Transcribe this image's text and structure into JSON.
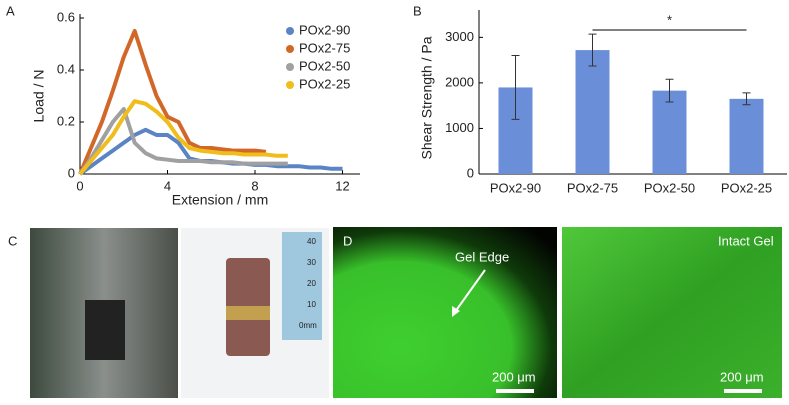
{
  "chart_data": [
    {
      "type": "line",
      "panel": "A",
      "xlabel": "Extension / mm",
      "ylabel": "Load / N",
      "x": [
        0,
        0.5,
        1,
        1.5,
        2,
        2.5,
        3,
        3.5,
        4,
        4.5,
        5,
        5.5,
        6,
        6.5,
        7,
        7.5,
        8,
        8.5,
        9,
        9.5,
        10,
        10.5,
        11,
        11.5,
        12
      ],
      "series": [
        {
          "name": "POx2-90",
          "color": "#5b84c4",
          "values": [
            0,
            0.03,
            0.06,
            0.09,
            0.12,
            0.15,
            0.17,
            0.15,
            0.15,
            0.12,
            0.06,
            0.05,
            0.05,
            0.045,
            0.04,
            0.04,
            0.035,
            0.035,
            0.03,
            0.03,
            0.03,
            0.025,
            0.025,
            0.02,
            0.02
          ]
        },
        {
          "name": "POx2-75",
          "color": "#d2672a",
          "values": [
            0,
            0.1,
            0.2,
            0.32,
            0.45,
            0.55,
            0.42,
            0.3,
            0.22,
            0.2,
            0.12,
            0.1,
            0.1,
            0.095,
            0.09,
            0.09,
            0.09,
            0.085,
            null,
            null,
            null,
            null,
            null,
            null,
            null
          ]
        },
        {
          "name": "POx2-50",
          "color": "#a0a0a0",
          "values": [
            0,
            0.06,
            0.13,
            0.2,
            0.25,
            0.12,
            0.08,
            0.06,
            0.055,
            0.05,
            0.05,
            0.05,
            0.045,
            0.045,
            0.045,
            0.04,
            0.04,
            0.04,
            0.04,
            0.04,
            null,
            null,
            null,
            null,
            null
          ]
        },
        {
          "name": "POx2-25",
          "color": "#f0bd1a",
          "values": [
            0,
            0.05,
            0.1,
            0.15,
            0.22,
            0.28,
            0.27,
            0.24,
            0.2,
            0.14,
            0.1,
            0.09,
            0.085,
            0.08,
            0.08,
            0.075,
            0.075,
            0.075,
            0.07,
            0.07,
            null,
            null,
            null,
            null,
            null
          ]
        }
      ],
      "xlim": [
        0,
        12.8
      ],
      "xticks": [
        0,
        4,
        8,
        12
      ],
      "ylim": [
        0,
        0.6
      ],
      "yticks": [
        0,
        0.2,
        0.4,
        0.6
      ],
      "legend": "top-right"
    },
    {
      "type": "bar",
      "panel": "B",
      "ylabel": "Shear Strength / Pa",
      "categories": [
        "POx2-90",
        "POx2-75",
        "POx2-50",
        "POx2-25"
      ],
      "values": [
        1900,
        2720,
        1830,
        1650
      ],
      "errors": [
        700,
        350,
        250,
        130
      ],
      "color": "#6a8fd8",
      "ylim": [
        0,
        3600
      ],
      "yticks": [
        0,
        1000,
        2000,
        3000
      ],
      "significance": "*"
    }
  ],
  "photos": {
    "panel_c": "C",
    "ruler": [
      "40",
      "30",
      "20",
      "10",
      "0mm"
    ],
    "panel_d": "D",
    "gel_edge": "Gel Edge",
    "intact_gel": "Intact Gel",
    "scale_1": "200 μm",
    "scale_2": "200 μm"
  }
}
